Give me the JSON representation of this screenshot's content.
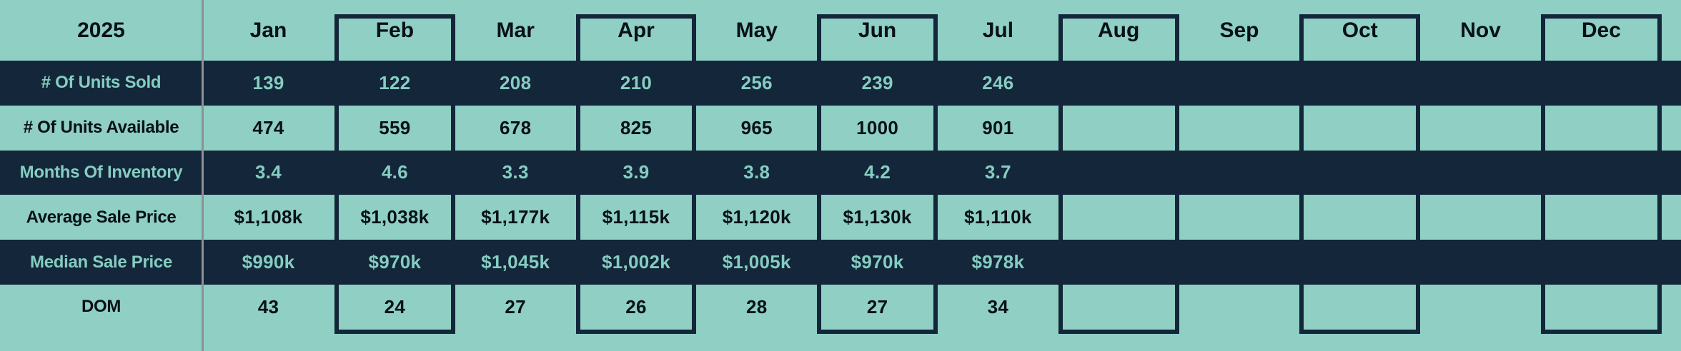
{
  "colors": {
    "teal": "#8FCFC4",
    "navy": "#13263A",
    "teal_text": "#85CDC1",
    "ink": "#081018",
    "gray_line": "#8F9194"
  },
  "chart_data": {
    "type": "table",
    "title": "2025",
    "columns": [
      "Jan",
      "Feb",
      "Mar",
      "Apr",
      "May",
      "Jun",
      "Jul",
      "Aug",
      "Sep",
      "Oct",
      "Nov",
      "Dec"
    ],
    "boxed_columns": [
      "Feb",
      "Apr",
      "Jun",
      "Aug",
      "Oct",
      "Dec"
    ],
    "rows": [
      {
        "key": "units-sold",
        "label": "# Of Units Sold",
        "theme": "dark",
        "values": [
          "139",
          "122",
          "208",
          "210",
          "256",
          "239",
          "246",
          "",
          "",
          "",
          "",
          ""
        ]
      },
      {
        "key": "units-available",
        "label": "# Of Units Available",
        "theme": "light",
        "values": [
          "474",
          "559",
          "678",
          "825",
          "965",
          "1000",
          "901",
          "",
          "",
          "",
          "",
          ""
        ]
      },
      {
        "key": "months-of-inventory",
        "label": "Months Of Inventory",
        "theme": "dark",
        "values": [
          "3.4",
          "4.6",
          "3.3",
          "3.9",
          "3.8",
          "4.2",
          "3.7",
          "",
          "",
          "",
          "",
          ""
        ]
      },
      {
        "key": "average-sale-price",
        "label": "Average Sale Price",
        "theme": "light",
        "values": [
          "$1,108k",
          "$1,038k",
          "$1,177k",
          "$1,115k",
          "$1,120k",
          "$1,130k",
          "$1,110k",
          "",
          "",
          "",
          "",
          ""
        ]
      },
      {
        "key": "median-sale-price",
        "label": "Median Sale Price",
        "theme": "dark",
        "values": [
          "$990k",
          "$970k",
          "$1,045k",
          "$1,002k",
          "$1,005k",
          "$970k",
          "$978k",
          "",
          "",
          "",
          "",
          ""
        ]
      },
      {
        "key": "dom",
        "label": "DOM",
        "theme": "light",
        "values": [
          "43",
          "24",
          "27",
          "26",
          "28",
          "27",
          "34",
          "",
          "",
          "",
          "",
          ""
        ]
      }
    ]
  }
}
